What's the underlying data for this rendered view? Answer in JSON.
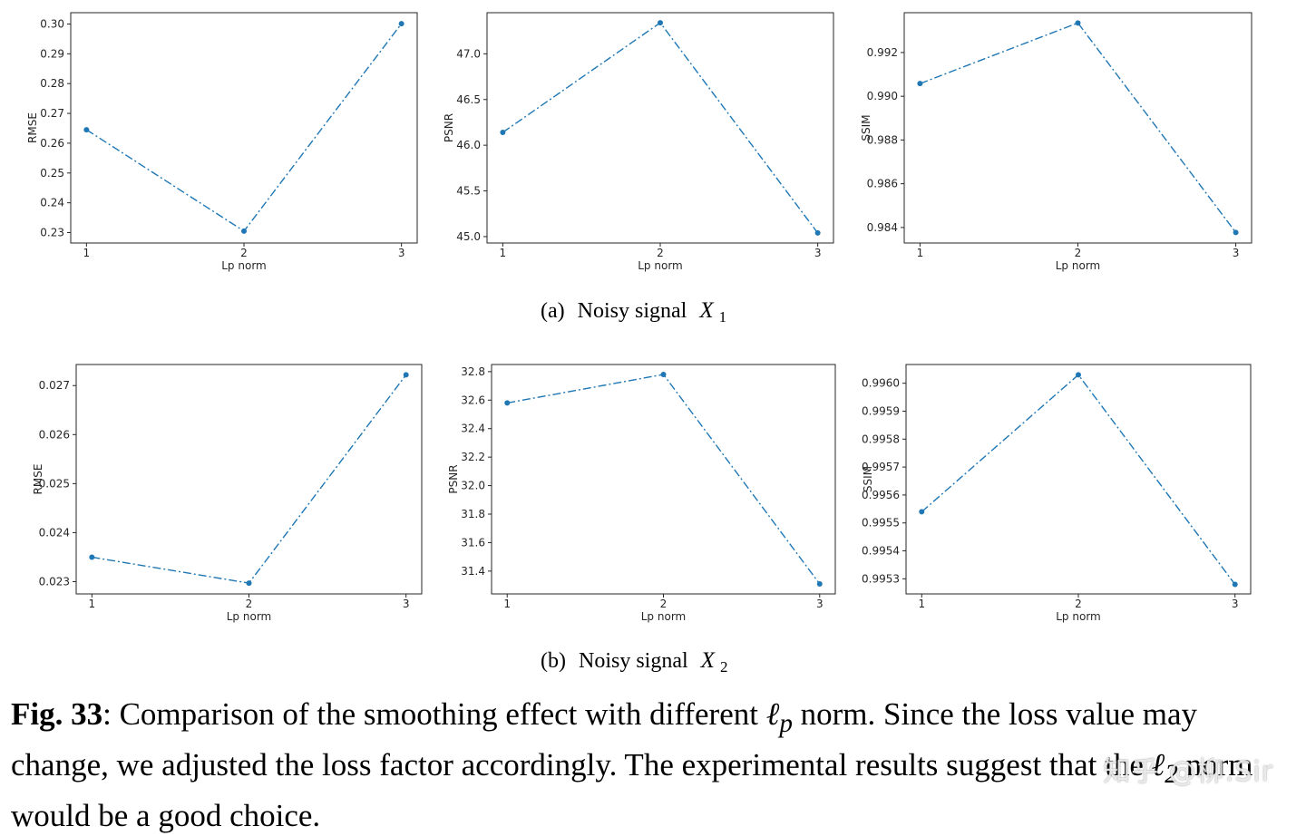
{
  "chart_data": [
    {
      "type": "line",
      "group": "a",
      "xlabel": "Lp norm",
      "ylabel": "RMSE",
      "x": [
        1,
        2,
        3
      ],
      "y": [
        0.2645,
        0.2305,
        0.3001
      ],
      "ylim": [
        0.2265,
        0.3038
      ],
      "yticks": [
        "0.23",
        "0.24",
        "0.25",
        "0.26",
        "0.27",
        "0.28",
        "0.29",
        "0.30"
      ],
      "ytick_values": [
        0.23,
        0.24,
        0.25,
        0.26,
        0.27,
        0.28,
        0.29,
        0.3
      ],
      "xticks": [
        "1",
        "2",
        "3"
      ],
      "color": "#1f77b4",
      "linestyle": "dash-dot",
      "marker": "circle"
    },
    {
      "type": "line",
      "group": "a",
      "xlabel": "Lp norm",
      "ylabel": "PSNR",
      "x": [
        1,
        2,
        3
      ],
      "y": [
        46.14,
        47.34,
        45.04
      ],
      "ylim": [
        44.93,
        47.45
      ],
      "yticks": [
        "45.0",
        "45.5",
        "46.0",
        "46.5",
        "47.0"
      ],
      "ytick_values": [
        45.0,
        45.5,
        46.0,
        46.5,
        47.0
      ],
      "xticks": [
        "1",
        "2",
        "3"
      ],
      "color": "#1f77b4",
      "linestyle": "dash-dot",
      "marker": "circle"
    },
    {
      "type": "line",
      "group": "a",
      "xlabel": "Lp norm",
      "ylabel": "SSIM",
      "x": [
        1,
        2,
        3
      ],
      "y": [
        0.99058,
        0.99335,
        0.98377
      ],
      "ylim": [
        0.98329,
        0.99382
      ],
      "yticks": [
        "0.984",
        "0.986",
        "0.988",
        "0.990",
        "0.992"
      ],
      "ytick_values": [
        0.984,
        0.986,
        0.988,
        0.99,
        0.992
      ],
      "xticks": [
        "1",
        "2",
        "3"
      ],
      "color": "#1f77b4",
      "linestyle": "dash-dot",
      "marker": "circle"
    },
    {
      "type": "line",
      "group": "b",
      "xlabel": "Lp norm",
      "ylabel": "RMSE",
      "x": [
        1,
        2,
        3
      ],
      "y": [
        0.0235,
        0.02297,
        0.02722
      ],
      "ylim": [
        0.02275,
        0.02743
      ],
      "yticks": [
        "0.023",
        "0.024",
        "0.025",
        "0.026",
        "0.027"
      ],
      "ytick_values": [
        0.023,
        0.024,
        0.025,
        0.026,
        0.027
      ],
      "xticks": [
        "1",
        "2",
        "3"
      ],
      "color": "#1f77b4",
      "linestyle": "dash-dot",
      "marker": "circle"
    },
    {
      "type": "line",
      "group": "b",
      "xlabel": "Lp norm",
      "ylabel": "PSNR",
      "x": [
        1,
        2,
        3
      ],
      "y": [
        32.58,
        32.78,
        31.31
      ],
      "ylim": [
        31.24,
        32.85
      ],
      "yticks": [
        "31.4",
        "31.6",
        "31.8",
        "32.0",
        "32.2",
        "32.4",
        "32.6",
        "32.8"
      ],
      "ytick_values": [
        31.4,
        31.6,
        31.8,
        32.0,
        32.2,
        32.4,
        32.6,
        32.8
      ],
      "xticks": [
        "1",
        "2",
        "3"
      ],
      "color": "#1f77b4",
      "linestyle": "dash-dot",
      "marker": "circle"
    },
    {
      "type": "line",
      "group": "b",
      "xlabel": "Lp norm",
      "ylabel": "SSIM",
      "x": [
        1,
        2,
        3
      ],
      "y": [
        0.99554,
        0.99603,
        0.99528
      ],
      "ylim": [
        0.995246,
        0.996067
      ],
      "yticks": [
        "0.9953",
        "0.9954",
        "0.9955",
        "0.9956",
        "0.9957",
        "0.9958",
        "0.9959",
        "0.9960"
      ],
      "ytick_values": [
        0.9953,
        0.9954,
        0.9955,
        0.9956,
        0.9957,
        0.9958,
        0.9959,
        0.996
      ],
      "xticks": [
        "1",
        "2",
        "3"
      ],
      "color": "#1f77b4",
      "linestyle": "dash-dot",
      "marker": "circle"
    }
  ],
  "subcaptions": {
    "a": {
      "label": "(a)",
      "text": "Noisy signal",
      "var": "X",
      "sub": "1"
    },
    "b": {
      "label": "(b)",
      "text": "Noisy signal",
      "var": "X",
      "sub": "2"
    }
  },
  "caption": {
    "fig_label": "Fig. 33",
    "part1": ": Comparison of the smoothing effect with different ",
    "math1": "ℓ",
    "math1_sub": "p",
    "part2": " norm. Since the loss value may change, we adjusted the loss factor accordingly. The experimental results suggest that the ",
    "math2": "ℓ",
    "math2_sub": "2",
    "part3": " norm would be a good choice."
  },
  "watermark": "知乎 @柳.Sir"
}
